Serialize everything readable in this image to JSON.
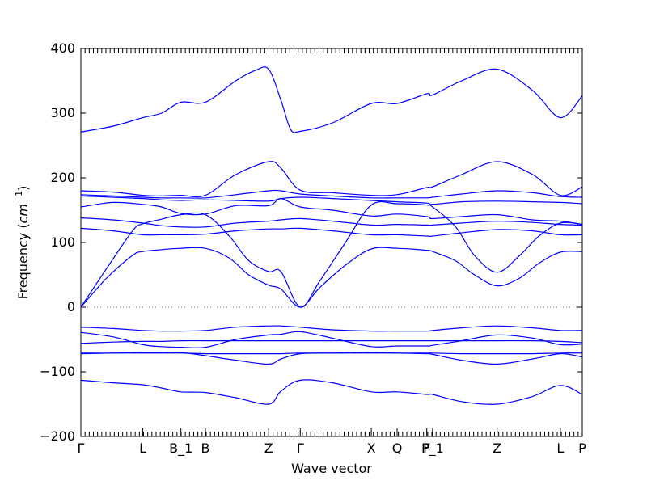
{
  "chart_data": {
    "type": "line",
    "title": "",
    "xlabel": "Wave vector",
    "ylabel": "Frequency (cm^{-1})",
    "ylabel_prefix": "Frequency (",
    "ylabel_unit": "cm",
    "ylabel_exp": "−1",
    "ylabel_suffix": ")",
    "ylim": [
      -200,
      400
    ],
    "yticks": [
      -200,
      -100,
      0,
      100,
      200,
      300,
      400
    ],
    "ytick_labels": [
      "−200",
      "−100",
      "0",
      "100",
      "200",
      "300",
      "400"
    ],
    "xlim": [
      0,
      7.77
    ],
    "grid": false,
    "zero_line": true,
    "line_color": "#0000ff",
    "high_symmetry_points": [
      {
        "label": "Γ",
        "x": 0.0
      },
      {
        "label": "L",
        "x": 0.96
      },
      {
        "label": "B_1",
        "x": 1.55
      },
      {
        "label": "B",
        "x": 1.93
      },
      {
        "label": "Z",
        "x": 2.91
      },
      {
        "label": "Γ",
        "x": 3.4
      },
      {
        "label": "X",
        "x": 4.5
      },
      {
        "label": "Q",
        "x": 4.9
      },
      {
        "label": "F",
        "x": 5.36
      },
      {
        "label": "P_1",
        "x": 5.45
      },
      {
        "label": "Z",
        "x": 6.45
      },
      {
        "label": "L",
        "x": 7.43
      },
      {
        "label": "P",
        "x": 7.77
      }
    ],
    "series": [
      {
        "x": [
          0,
          0.5,
          0.96,
          1.25,
          1.55,
          1.93,
          2.4,
          2.91,
          3.1,
          3.4,
          3.9,
          4.5,
          4.9,
          5.36,
          5.45,
          5.9,
          6.45,
          7.0,
          7.43,
          7.77
        ],
        "values": [
          -113,
          -117,
          -120,
          -125,
          -131,
          -132,
          -140,
          -150,
          -130,
          -113,
          -117,
          -131,
          -131,
          -135,
          -135,
          -146,
          -150,
          -138,
          -121,
          -135
        ]
      },
      {
        "x": [
          0,
          0.5,
          0.96,
          1.25,
          1.55,
          1.93,
          2.4,
          2.91,
          3.1,
          3.4,
          3.9,
          4.5,
          4.9,
          5.36,
          5.45,
          5.9,
          6.45,
          7.0,
          7.43,
          7.77
        ],
        "values": [
          -72,
          -71,
          -70,
          -70,
          -70,
          -75,
          -82,
          -88,
          -80,
          -72,
          -71,
          -70,
          -71,
          -72,
          -73,
          -82,
          -88,
          -80,
          -72,
          -77
        ]
      },
      {
        "x": [
          0,
          0.5,
          0.96,
          1.25,
          1.55,
          1.93,
          2.4,
          2.91,
          3.1,
          3.4,
          3.9,
          4.5,
          4.9,
          5.36,
          5.45,
          5.9,
          6.45,
          7.0,
          7.43,
          7.77
        ],
        "values": [
          -71,
          -71,
          -71,
          -71,
          -71,
          -72,
          -72,
          -72,
          -72,
          -71,
          -71,
          -71,
          -71,
          -71,
          -71,
          -72,
          -72,
          -72,
          -71,
          -71
        ]
      },
      {
        "x": [
          0,
          0.5,
          0.96,
          1.25,
          1.55,
          1.93,
          2.4,
          2.91,
          3.1,
          3.4,
          3.9,
          4.5,
          4.9,
          5.36,
          5.45,
          5.9,
          6.45,
          7.0,
          7.43,
          7.77
        ],
        "values": [
          -56,
          -54,
          -53,
          -53,
          -52,
          -52,
          -52,
          -52,
          -52,
          -52,
          -52,
          -52,
          -52,
          -52,
          -52,
          -52,
          -52,
          -52,
          -53,
          -55
        ]
      },
      {
        "x": [
          0,
          0.5,
          0.96,
          1.25,
          1.55,
          1.93,
          2.4,
          2.91,
          3.1,
          3.4,
          3.9,
          4.5,
          4.9,
          5.36,
          5.45,
          5.9,
          6.45,
          7.0,
          7.43,
          7.77
        ],
        "values": [
          -39,
          -46,
          -58,
          -61,
          -62,
          -62,
          -50,
          -43,
          -42,
          -38,
          -48,
          -61,
          -60,
          -60,
          -59,
          -52,
          -43,
          -48,
          -58,
          -57
        ]
      },
      {
        "x": [
          0,
          0.5,
          0.96,
          1.25,
          1.55,
          1.93,
          2.4,
          2.91,
          3.1,
          3.4,
          3.9,
          4.5,
          4.9,
          5.36,
          5.45,
          5.9,
          6.45,
          7.0,
          7.43,
          7.77
        ],
        "values": [
          -31,
          -33,
          -36,
          -37,
          -37,
          -36,
          -31,
          -29,
          -29,
          -31,
          -35,
          -37,
          -37,
          -37,
          -36,
          -32,
          -29,
          -32,
          -36,
          -36
        ]
      },
      {
        "x": [
          0,
          0.4,
          0.8,
          0.96,
          1.25,
          1.55,
          1.93,
          2.3,
          2.6,
          2.91,
          3.1,
          3.4,
          3.7,
          4.1,
          4.5,
          4.9,
          5.36,
          5.45,
          5.8,
          6.1,
          6.45,
          6.8,
          7.1,
          7.43,
          7.77
        ],
        "values": [
          0,
          45,
          80,
          86,
          89,
          91,
          91,
          76,
          50,
          34,
          28,
          0,
          30,
          65,
          90,
          91,
          88,
          86,
          72,
          50,
          33,
          45,
          68,
          85,
          86
        ]
      },
      {
        "x": [
          0,
          0.4,
          0.8,
          0.96,
          1.25,
          1.55,
          1.93,
          2.3,
          2.6,
          2.91,
          3.1,
          3.4,
          3.7,
          4.1,
          4.5,
          4.9,
          5.36,
          5.45,
          5.8,
          6.1,
          6.45,
          6.8,
          7.1,
          7.43,
          7.77
        ],
        "values": [
          0,
          60,
          118,
          129,
          136,
          143,
          143,
          110,
          72,
          55,
          55,
          0,
          40,
          100,
          158,
          160,
          158,
          155,
          125,
          80,
          54,
          80,
          110,
          130,
          128
        ]
      },
      {
        "x": [
          0,
          0.5,
          0.96,
          1.25,
          1.55,
          1.93,
          2.4,
          2.91,
          3.1,
          3.4,
          3.9,
          4.5,
          4.9,
          5.36,
          5.45,
          5.9,
          6.45,
          7.0,
          7.43,
          7.77
        ],
        "values": [
          122,
          118,
          112,
          112,
          112,
          113,
          118,
          121,
          121,
          122,
          118,
          112,
          112,
          110,
          110,
          115,
          120,
          118,
          112,
          112
        ]
      },
      {
        "x": [
          0,
          0.5,
          0.96,
          1.25,
          1.55,
          1.93,
          2.4,
          2.91,
          3.1,
          3.4,
          3.9,
          4.5,
          4.9,
          5.36,
          5.45,
          5.9,
          6.45,
          7.0,
          7.43,
          7.77
        ],
        "values": [
          138,
          135,
          130,
          126,
          124,
          124,
          130,
          133,
          135,
          137,
          133,
          127,
          128,
          127,
          127,
          130,
          133,
          131,
          128,
          127
        ]
      },
      {
        "x": [
          0,
          0.5,
          0.96,
          1.25,
          1.55,
          1.93,
          2.4,
          2.91,
          3.1,
          3.4,
          3.9,
          4.5,
          4.9,
          5.36,
          5.45,
          5.9,
          6.45,
          7.0,
          7.43,
          7.77
        ],
        "values": [
          155,
          162,
          159,
          155,
          145,
          144,
          157,
          157,
          168,
          155,
          150,
          141,
          144,
          140,
          137,
          140,
          143,
          135,
          133,
          128
        ]
      },
      {
        "x": [
          0,
          0.5,
          0.96,
          1.25,
          1.55,
          1.93,
          2.4,
          2.91,
          3.1,
          3.4,
          3.9,
          4.5,
          4.9,
          5.36,
          5.45,
          5.9,
          6.45,
          7.0,
          7.43,
          7.77
        ],
        "values": [
          172,
          170,
          168,
          166,
          165,
          166,
          165,
          164,
          168,
          170,
          168,
          165,
          163,
          161,
          159,
          163,
          164,
          163,
          162,
          160
        ]
      },
      {
        "x": [
          0,
          0.5,
          0.96,
          1.25,
          1.55,
          1.93,
          2.4,
          2.91,
          3.1,
          3.4,
          3.9,
          4.5,
          4.9,
          5.36,
          5.45,
          5.9,
          6.45,
          7.0,
          7.43,
          7.77
        ],
        "values": [
          174,
          172,
          170,
          169,
          169,
          169,
          174,
          180,
          180,
          175,
          172,
          169,
          169,
          169,
          170,
          175,
          180,
          177,
          171,
          170
        ]
      },
      {
        "x": [
          0,
          0.5,
          0.96,
          1.25,
          1.55,
          1.93,
          2.4,
          2.91,
          3.1,
          3.4,
          3.9,
          4.5,
          4.9,
          5.36,
          5.45,
          5.9,
          6.45,
          7.0,
          7.43,
          7.77
        ],
        "values": [
          180,
          178,
          173,
          172,
          173,
          173,
          205,
          225,
          215,
          181,
          177,
          173,
          174,
          185,
          186,
          205,
          225,
          205,
          173,
          186
        ]
      },
      {
        "x": [
          0,
          0.5,
          0.96,
          1.25,
          1.55,
          1.93,
          2.4,
          2.7,
          2.91,
          3.1,
          3.25,
          3.4,
          3.9,
          4.5,
          4.9,
          5.36,
          5.45,
          5.9,
          6.45,
          7.0,
          7.43,
          7.77
        ],
        "values": [
          271,
          280,
          293,
          300,
          317,
          317,
          350,
          366,
          368,
          320,
          275,
          272,
          285,
          315,
          315,
          330,
          328,
          350,
          368,
          335,
          293,
          327
        ]
      }
    ]
  }
}
